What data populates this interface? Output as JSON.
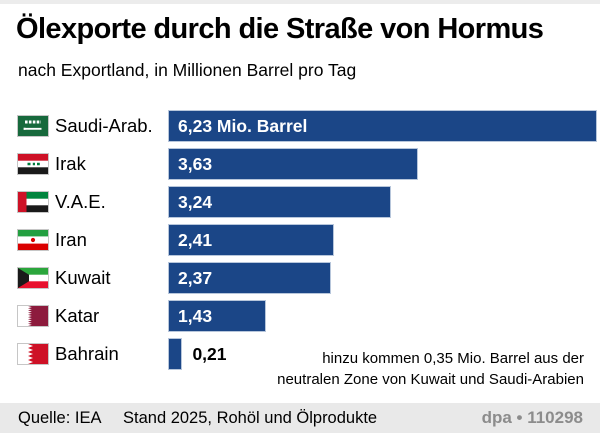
{
  "header": {
    "title": "Ölexporte durch die Straße von Hormus",
    "subtitle": "nach Exportland, in Millionen Barrel pro Tag"
  },
  "chart_data": {
    "type": "bar",
    "orientation": "horizontal",
    "title": "Ölexporte durch die Straße von Hormus",
    "subtitle": "nach Exportland, in Millionen Barrel pro Tag",
    "unit": "Millionen Barrel pro Tag",
    "categories": [
      "Saudi-Arab.",
      "Irak",
      "V.A.E.",
      "Iran",
      "Kuwait",
      "Katar",
      "Bahrain"
    ],
    "values": [
      6.23,
      3.63,
      3.24,
      2.41,
      2.37,
      1.43,
      0.21
    ],
    "value_labels": [
      "6,23 Mio. Barrel",
      "3,63",
      "3,24",
      "2,41",
      "2,37",
      "1,43",
      "0,21"
    ],
    "value_label_inside": [
      true,
      true,
      true,
      true,
      true,
      true,
      false
    ],
    "flags": [
      "saudi-arabia",
      "iraq",
      "uae",
      "iran",
      "kuwait",
      "qatar",
      "bahrain"
    ],
    "xlim": [
      0,
      6.23
    ],
    "grid": false,
    "legend": false,
    "annotation": "hinzu kommen 0,35 Mio. Barrel aus der neutralen Zone von Kuwait und Saudi-Arabien"
  },
  "note": {
    "line1": "hinzu kommen 0,35 Mio. Barrel aus der",
    "line2": "neutralen Zone von Kuwait und Saudi-Arabien"
  },
  "footer": {
    "source": "Quelle: IEA",
    "status": "Stand 2025, Rohöl und Ölprodukte",
    "credit": "dpa • 110298"
  },
  "colors": {
    "bar": "#1b4687",
    "bar_border": "#b7c6db",
    "bar_text": "#ffffff",
    "outside_text": "#000000",
    "footer_bg": "#e9e9e9",
    "credit_text": "#8c8c8c",
    "top_strip": "#ececec"
  }
}
